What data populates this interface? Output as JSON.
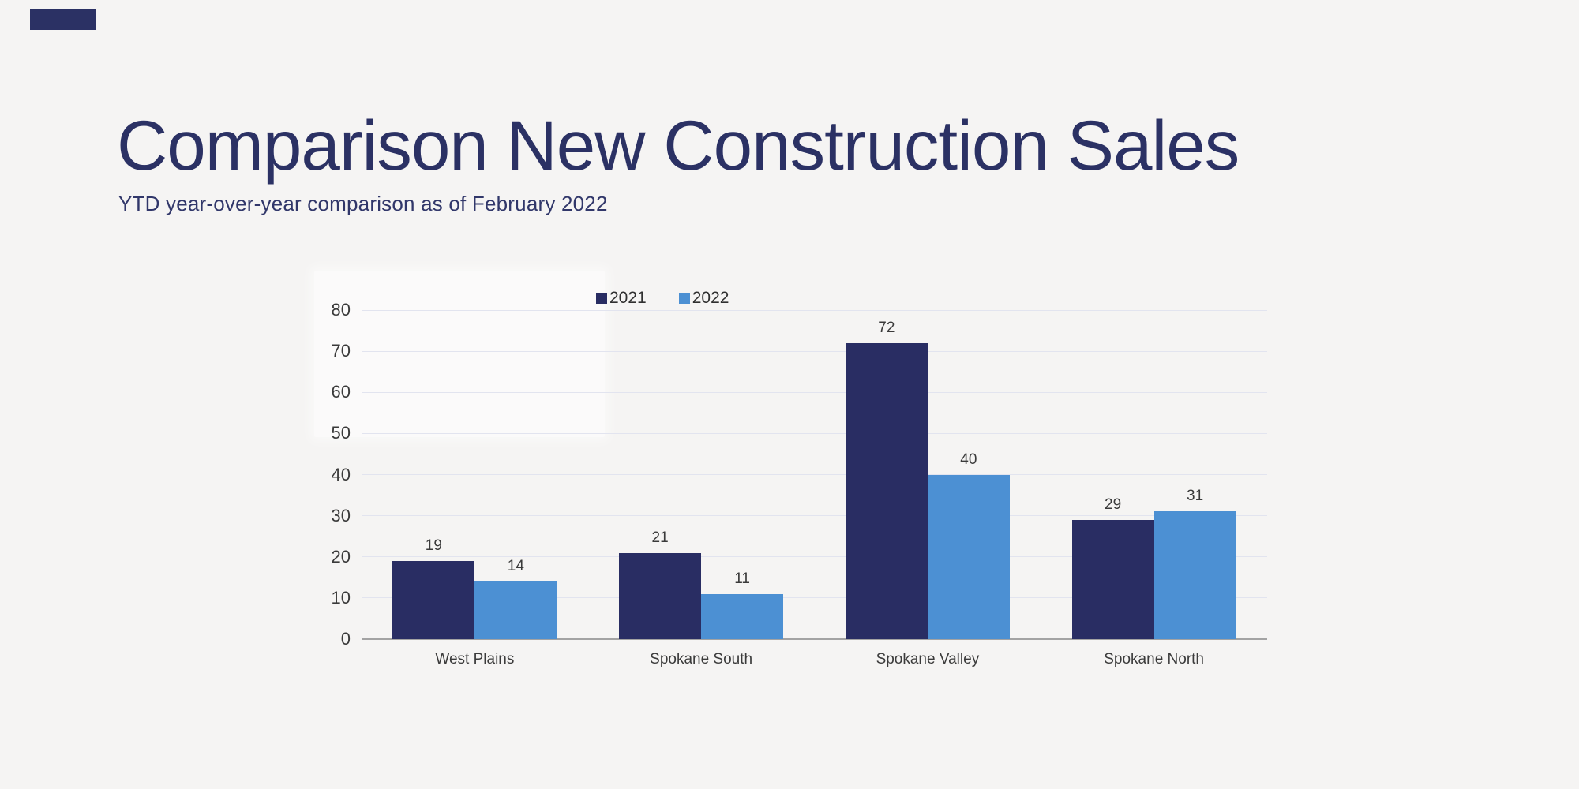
{
  "page": {
    "background_color": "#f5f4f3",
    "accent_bar_color": "#2b3164"
  },
  "header": {
    "title": "Comparison New Construction Sales",
    "subtitle": "YTD year-over-year comparison as of February 2022",
    "title_color": "#2b3164",
    "subtitle_color": "#31376a"
  },
  "chart_data": {
    "type": "bar",
    "title": "",
    "categories": [
      "West Plains",
      "Spokane South",
      "Spokane Valley",
      "Spokane North"
    ],
    "series": [
      {
        "name": "2021",
        "color": "#292d63",
        "values": [
          19,
          21,
          72,
          29
        ]
      },
      {
        "name": "2022",
        "color": "#4c90d3",
        "values": [
          14,
          11,
          40,
          31
        ]
      }
    ],
    "ylim": [
      0,
      80
    ],
    "yticks": [
      0,
      10,
      20,
      30,
      40,
      50,
      60,
      70,
      80
    ],
    "grid": true,
    "legend_position": "top-center",
    "value_labels": true,
    "gridline_color": "#e2e4ef",
    "x_axis_color": "#a3a3a3",
    "y_axis_color": "#b6b6b9",
    "label_color": "#3a3a3a"
  }
}
